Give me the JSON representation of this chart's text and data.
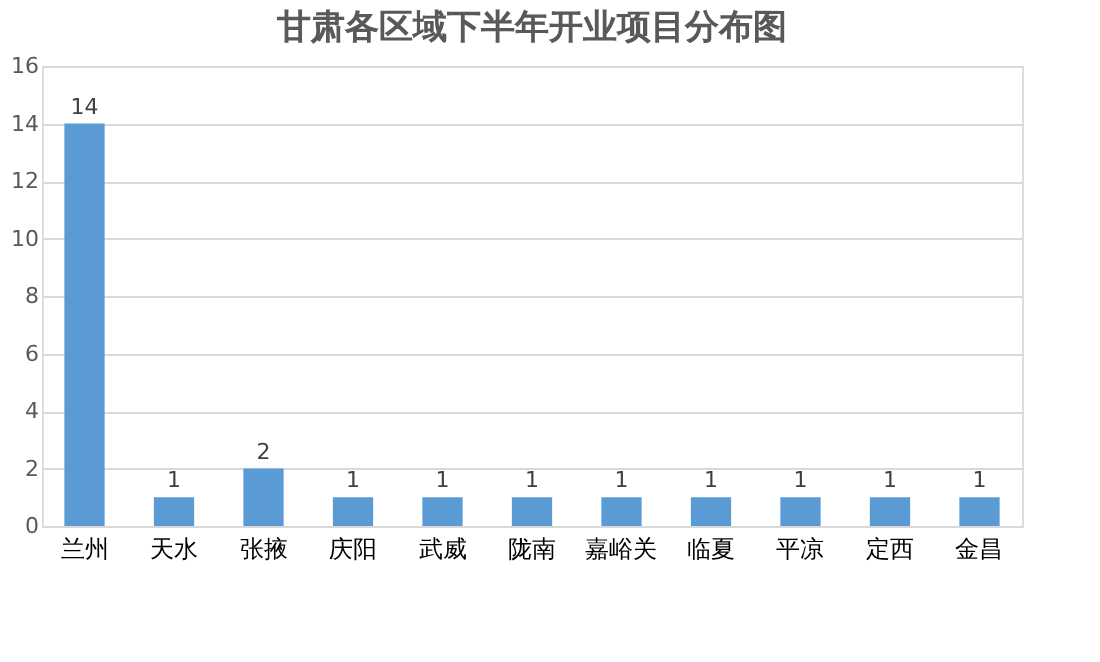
{
  "chart_data": {
    "type": "bar",
    "title": "甘肃各区域下半年开业项目分布图",
    "categories": [
      "兰州",
      "天水",
      "张掖",
      "庆阳",
      "武威",
      "陇南",
      "嘉峪关",
      "临夏",
      "平凉",
      "定西",
      "金昌"
    ],
    "values": [
      14,
      1,
      2,
      1,
      1,
      1,
      1,
      1,
      1,
      1,
      1
    ],
    "color": "#5b9bd5",
    "ylim": [
      0,
      16
    ],
    "yticks": [
      0,
      2,
      4,
      6,
      8,
      10,
      12,
      14,
      16
    ],
    "grid": "y",
    "data_labels": true
  }
}
